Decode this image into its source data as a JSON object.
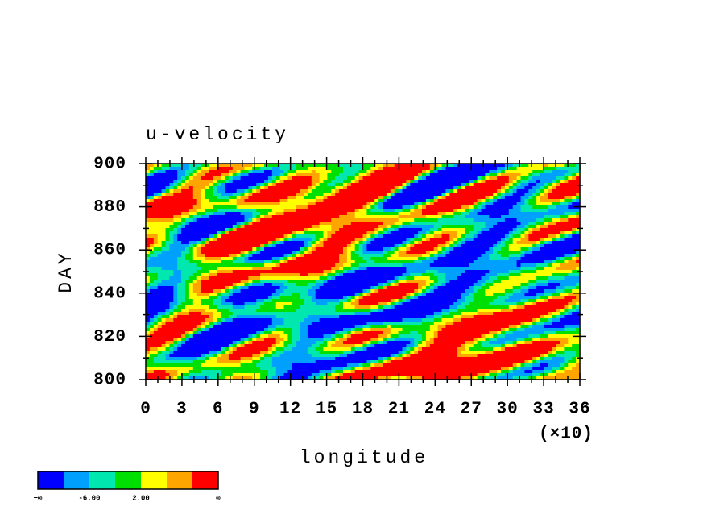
{
  "chart_data": {
    "type": "heatmap",
    "title": "u-velocity",
    "x_label": "longitude",
    "y_label": "DAY",
    "x_multiplier": "(×10)",
    "xlim": [
      0,
      36
    ],
    "xticks": [
      0,
      3,
      6,
      9,
      12,
      15,
      18,
      21,
      24,
      27,
      30,
      33,
      36
    ],
    "ylim": [
      800,
      900
    ],
    "yticks": [
      800,
      820,
      840,
      860,
      880,
      900
    ],
    "colorbar": {
      "colors": [
        "#0000ff",
        "#00a0ff",
        "#00e8b0",
        "#00e000",
        "#ffff00",
        "#ffa500",
        "#ff0000"
      ],
      "labels": [
        "−∞",
        "-6.00",
        "2.00",
        "∞"
      ]
    }
  }
}
